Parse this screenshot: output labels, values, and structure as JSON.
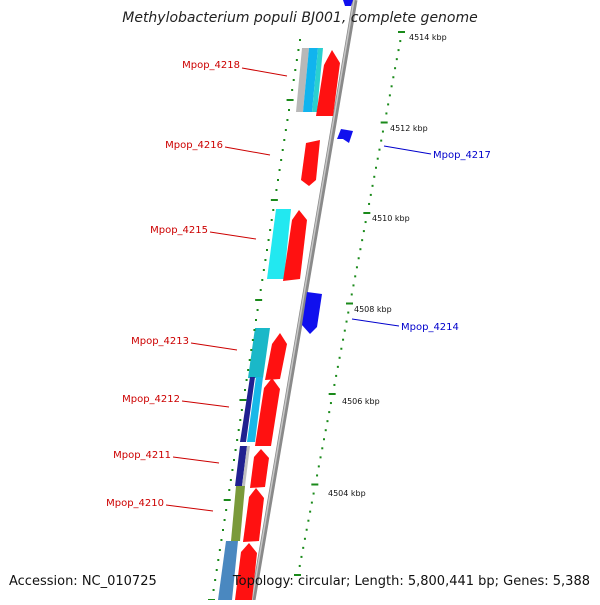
{
  "title": "Methylobacterium populi BJ001, complete genome",
  "accession": "Accession: NC_010725",
  "genome_info": "Topology: circular; Length: 5,800,441 bp; Genes: 5,388",
  "scale_labels": [
    "4514 kbp",
    "4512 kbp",
    "4510 kbp",
    "4508 kbp",
    "4506 kbp",
    "4504 kbp"
  ],
  "gene_labels": {
    "reverse": [
      "Mpop_4218",
      "Mpop_4216",
      "Mpop_4215",
      "Mpop_4213",
      "Mpop_4212",
      "Mpop_4211",
      "Mpop_4210"
    ],
    "forward": [
      "Mpop_4217",
      "Mpop_4214"
    ]
  },
  "colors": {
    "reverse_strand": "#ff0000",
    "forward_strand": "#1010ee",
    "backbone": "#8a8a8a",
    "scale_ticks": "#1a8a1a",
    "label_reverse": "#cc0000",
    "label_forward": "#0000cc"
  }
}
